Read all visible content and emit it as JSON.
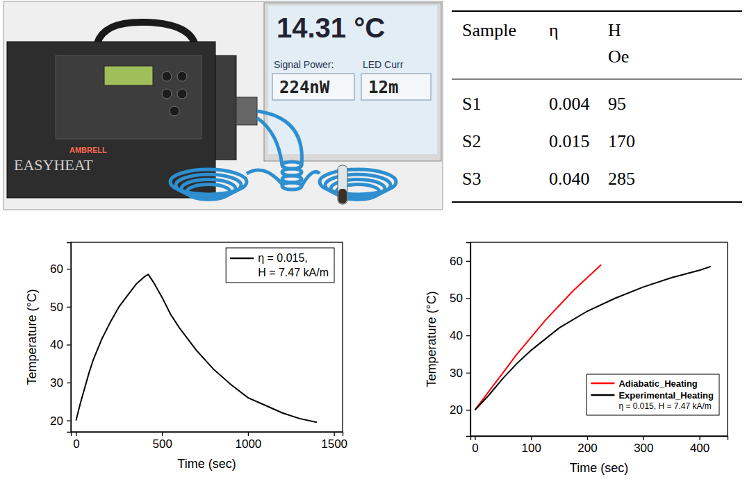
{
  "photo": {
    "display_temperature": "14.31 °C",
    "signal_power_label": "Signal Power:",
    "signal_power": "224nW",
    "led_current_label": "LED Curr",
    "led_current": "12m",
    "brand": "EASYHEAT",
    "maker": "AMBRELL"
  },
  "table": {
    "header": [
      [
        "Sample"
      ],
      [
        "η"
      ],
      [
        "H",
        "Oe"
      ]
    ],
    "rows": [
      [
        "S1",
        "0.004",
        "95"
      ],
      [
        "S2",
        "0.015",
        "170"
      ],
      [
        "S3",
        "0.040",
        "285"
      ]
    ]
  },
  "chart_data": [
    {
      "type": "line",
      "x_label": "Time (sec)",
      "y_label": "Temperature (°C)",
      "xlim": [
        -30,
        1550
      ],
      "ylim": [
        17,
        67
      ],
      "xticks": [
        0,
        500,
        1000,
        1500
      ],
      "yticks": [
        20,
        30,
        40,
        50,
        60
      ],
      "legend": "top right",
      "series": [
        {
          "name": "η = 0.015, H = 7.47 kA/m",
          "color": "#000000",
          "x": [
            0,
            25,
            50,
            75,
            100,
            150,
            200,
            250,
            300,
            350,
            400,
            420,
            450,
            500,
            550,
            600,
            700,
            800,
            900,
            1000,
            1100,
            1200,
            1300,
            1400
          ],
          "values": [
            20,
            24.5,
            28.5,
            32.5,
            36,
            41.5,
            46,
            50,
            53,
            56,
            58,
            58.5,
            56.5,
            52.5,
            48,
            44.5,
            38.5,
            33.5,
            29.5,
            26,
            24,
            22,
            20.5,
            19.5
          ]
        }
      ]
    },
    {
      "type": "line",
      "x_label": "Time (sec)",
      "y_label": "Temperature (°C)",
      "xlim": [
        -8,
        450
      ],
      "ylim": [
        13,
        65
      ],
      "xticks": [
        0,
        100,
        200,
        300,
        400
      ],
      "yticks": [
        20,
        30,
        40,
        50,
        60
      ],
      "legend": "bottom right",
      "annotation": "η = 0.015, H = 7.47 kA/m",
      "series": [
        {
          "name": "Adiabatic_Heating",
          "color": "#ff0000",
          "x": [
            0,
            25,
            50,
            75,
            100,
            125,
            150,
            175,
            200,
            225
          ],
          "values": [
            20,
            25,
            30,
            35,
            39.5,
            44,
            48,
            52,
            55.5,
            59
          ]
        },
        {
          "name": "Experimental_Heating",
          "color": "#000000",
          "x": [
            0,
            25,
            50,
            75,
            100,
            150,
            200,
            250,
            300,
            350,
            400,
            420
          ],
          "values": [
            20,
            24,
            28.5,
            32.5,
            36,
            42,
            46.5,
            50,
            53,
            55.5,
            57.5,
            58.5
          ]
        }
      ]
    }
  ]
}
